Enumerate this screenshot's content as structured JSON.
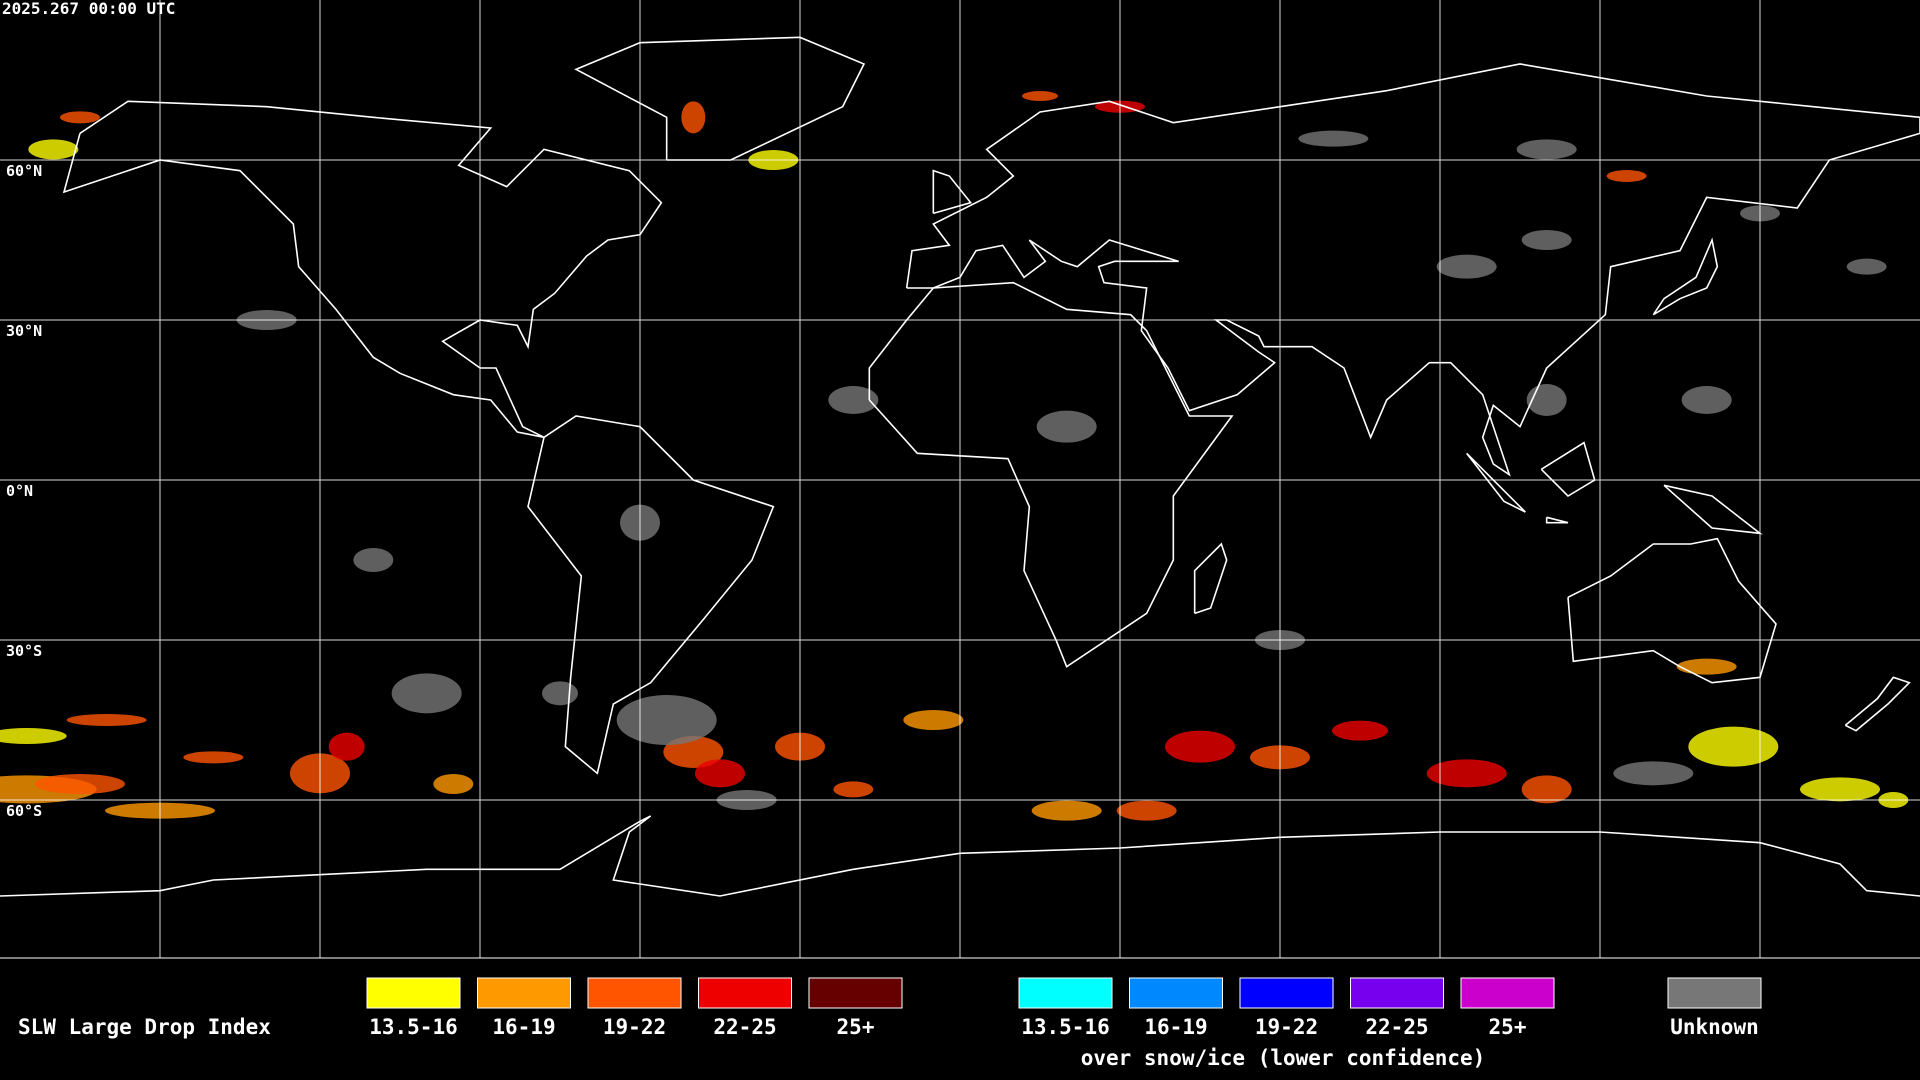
{
  "header": {
    "timestamp": "2025.267 00:00 UTC"
  },
  "map": {
    "latitude_labels": [
      "60°N",
      "30°N",
      "0°N",
      "30°S",
      "60°S"
    ]
  },
  "legend": {
    "title": "SLW Large Drop Index",
    "groups": [
      {
        "items": [
          {
            "label": "13.5-16",
            "color": "#ffff00"
          },
          {
            "label": "16-19",
            "color": "#ff9900"
          },
          {
            "label": "19-22",
            "color": "#ff5500"
          },
          {
            "label": "22-25",
            "color": "#ee0000"
          },
          {
            "label": "25+",
            "color": "#660000"
          }
        ]
      },
      {
        "items": [
          {
            "label": "13.5-16",
            "color": "#00ffff"
          },
          {
            "label": "16-19",
            "color": "#0088ff"
          },
          {
            "label": "19-22",
            "color": "#0000ff"
          },
          {
            "label": "22-25",
            "color": "#7700ee"
          },
          {
            "label": "25+",
            "color": "#cc00cc"
          }
        ],
        "caption": "over snow/ice (lower confidence)"
      },
      {
        "items": [
          {
            "label": "Unknown",
            "color": "#777777"
          }
        ]
      }
    ]
  }
}
